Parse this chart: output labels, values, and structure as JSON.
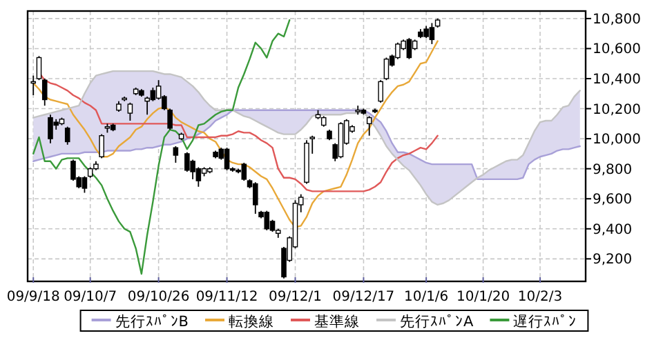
{
  "chart_data": {
    "type": "candlestick",
    "categories": [
      "09/9/18",
      null,
      null,
      null,
      null,
      null,
      null,
      null,
      null,
      null,
      "09/10/7",
      null,
      null,
      null,
      null,
      null,
      null,
      null,
      null,
      null,
      null,
      null,
      "09/10/26",
      null,
      null,
      null,
      null,
      null,
      null,
      null,
      null,
      null,
      null,
      null,
      "09/11/12",
      null,
      null,
      null,
      null,
      null,
      null,
      null,
      null,
      null,
      null,
      null,
      "09/12/1",
      null,
      null,
      null,
      null,
      null,
      null,
      null,
      null,
      null,
      null,
      null,
      "09/12/17",
      null,
      null,
      null,
      null,
      null,
      null,
      null,
      null,
      null,
      null,
      "10/1/6",
      null,
      null,
      null,
      null,
      null,
      null,
      null,
      null,
      null,
      "10/1/20",
      null,
      null,
      null,
      null,
      null,
      null,
      null,
      null,
      null,
      "10/2/3",
      null,
      null,
      null,
      null,
      null,
      null,
      null
    ],
    "ohlc": [
      [
        10370,
        10420,
        10290,
        10380
      ],
      [
        10400,
        10550,
        10390,
        10540
      ],
      [
        10390,
        10400,
        10220,
        10260
      ],
      [
        10140,
        10160,
        9970,
        10000
      ],
      [
        10110,
        10130,
        10060,
        10090
      ],
      [
        10100,
        10140,
        10090,
        10130
      ],
      [
        10070,
        10080,
        9960,
        9980
      ],
      [
        9850,
        9860,
        9720,
        9730
      ],
      [
        9740,
        9750,
        9670,
        9680
      ],
      [
        9740,
        9750,
        9640,
        9670
      ],
      [
        9750,
        9810,
        9740,
        9800
      ],
      [
        9800,
        9850,
        9790,
        9830
      ],
      [
        9880,
        10030,
        9870,
        10020
      ],
      [
        10070,
        10100,
        10040,
        10080
      ],
      [
        10090,
        10100,
        10050,
        10060
      ],
      [
        10190,
        10250,
        10180,
        10230
      ],
      [
        10260,
        10280,
        10250,
        10270
      ],
      [
        10170,
        10240,
        10120,
        10230
      ],
      [
        10300,
        10340,
        10290,
        10330
      ],
      [
        10320,
        10330,
        10280,
        10290
      ],
      [
        10250,
        10280,
        10160,
        10270
      ],
      [
        10320,
        10340,
        10250,
        10260
      ],
      [
        10270,
        10390,
        10260,
        10350
      ],
      [
        10280,
        10290,
        10190,
        10200
      ],
      [
        10190,
        10200,
        10060,
        10070
      ],
      [
        9940,
        9950,
        9840,
        9890
      ],
      [
        10000,
        10040,
        9990,
        10030
      ],
      [
        9900,
        9910,
        9780,
        9790
      ],
      [
        9850,
        9860,
        9730,
        9780
      ],
      [
        9800,
        9810,
        9680,
        9720
      ],
      [
        9770,
        9810,
        9750,
        9800
      ],
      [
        9780,
        9810,
        9770,
        9800
      ],
      [
        9910,
        9920,
        9870,
        9880
      ],
      [
        9930,
        9940,
        9860,
        9870
      ],
      [
        9930,
        9940,
        9790,
        9800
      ],
      [
        9800,
        9810,
        9780,
        9790
      ],
      [
        9790,
        9800,
        9770,
        9780
      ],
      [
        9830,
        9840,
        9720,
        9730
      ],
      [
        9720,
        9730,
        9670,
        9680
      ],
      [
        9700,
        9710,
        9500,
        9560
      ],
      [
        9510,
        9520,
        9470,
        9480
      ],
      [
        9510,
        9520,
        9390,
        9400
      ],
      [
        9450,
        9460,
        9380,
        9390
      ],
      [
        9370,
        9400,
        9340,
        9390
      ],
      [
        9270,
        9280,
        9070,
        9080
      ],
      [
        9190,
        9350,
        9180,
        9340
      ],
      [
        9280,
        9590,
        9270,
        9570
      ],
      [
        9560,
        9630,
        9510,
        9610
      ],
      [
        9710,
        9990,
        9700,
        9970
      ],
      [
        10000,
        10020,
        9900,
        10010
      ],
      [
        10140,
        10190,
        10130,
        10160
      ],
      [
        10090,
        10150,
        10080,
        10140
      ],
      [
        10050,
        10060,
        9990,
        10000
      ],
      [
        9960,
        9970,
        9850,
        9870
      ],
      [
        9880,
        10110,
        9870,
        10100
      ],
      [
        9970,
        10130,
        9960,
        10120
      ],
      [
        10050,
        10090,
        10040,
        10080
      ],
      [
        10180,
        10220,
        10160,
        10190
      ],
      [
        10190,
        10200,
        10160,
        10170
      ],
      [
        10100,
        10150,
        10020,
        10140
      ],
      [
        10190,
        10200,
        10170,
        10180
      ],
      [
        10250,
        10390,
        10240,
        10380
      ],
      [
        10400,
        10540,
        10390,
        10530
      ],
      [
        10550,
        10560,
        10480,
        10490
      ],
      [
        10540,
        10640,
        10530,
        10630
      ],
      [
        10600,
        10660,
        10590,
        10650
      ],
      [
        10660,
        10670,
        10530,
        10540
      ],
      [
        10600,
        10660,
        10590,
        10650
      ],
      [
        10710,
        10730,
        10670,
        10680
      ],
      [
        10730,
        10750,
        10670,
        10680
      ],
      [
        10740,
        10770,
        10630,
        10660
      ],
      [
        10750,
        10800,
        10740,
        10790
      ],
      null,
      null,
      null,
      null,
      null,
      null,
      null,
      null,
      null,
      null,
      null,
      null,
      null,
      null,
      null,
      null,
      null,
      null,
      null,
      null,
      null,
      null,
      null,
      null,
      null
    ],
    "series": [
      {
        "type": "line",
        "name": "先行ｽﾊﾟﾝB",
        "color": "#a8a0d8",
        "values": [
          9850,
          9860,
          9870,
          9880,
          9890,
          9900,
          9900,
          9900,
          9900,
          9910,
          9910,
          9910,
          9910,
          9920,
          9920,
          9920,
          9920,
          9920,
          9930,
          9930,
          9940,
          9940,
          9950,
          9960,
          9960,
          9970,
          9980,
          10000,
          10010,
          10030,
          10050,
          10080,
          10120,
          10140,
          10160,
          10190,
          10190,
          10190,
          10190,
          10190,
          10190,
          10190,
          10190,
          10190,
          10190,
          10190,
          10190,
          10190,
          10190,
          10190,
          10190,
          10190,
          10190,
          10190,
          10190,
          10190,
          10190,
          10190,
          10190,
          10170,
          10140,
          10110,
          10050,
          9970,
          9910,
          9910,
          9900,
          9880,
          9860,
          9840,
          9830,
          9830,
          9830,
          9830,
          9830,
          9830,
          9830,
          9830,
          9730,
          9730,
          9730,
          9730,
          9730,
          9730,
          9730,
          9730,
          9740,
          9830,
          9860,
          9880,
          9890,
          9900,
          9920,
          9930,
          9930,
          9940,
          9950
        ],
        "upper": [
          10140,
          10150,
          10160,
          10170,
          10180,
          10190,
          10200,
          10210,
          10220,
          10300,
          10370,
          10420,
          10430,
          10440,
          10450,
          10450,
          10450,
          10450,
          10450,
          10450,
          10450,
          10450,
          10440,
          10430,
          10430,
          10420,
          10410,
          10380,
          10350,
          10310,
          10260,
          10220,
          10190,
          10190,
          10190,
          10190,
          10190,
          10190,
          10190,
          10190,
          10190,
          10190,
          10190,
          10190,
          10190,
          10190,
          10190,
          10190,
          10190,
          10190,
          10190,
          10190,
          10190,
          10190,
          10190,
          10190,
          10190,
          10190,
          10190,
          10170,
          10140,
          10110,
          10050,
          9970,
          9910,
          9910,
          9900,
          9880,
          9860,
          9840,
          9830,
          9830,
          9830,
          9830,
          9830,
          9830,
          9830,
          9830,
          9740,
          9760,
          9790,
          9810,
          9830,
          9850,
          9860,
          9860,
          9890,
          9970,
          10050,
          10110,
          10120,
          10120,
          10160,
          10210,
          10220,
          10280,
          10320
        ],
        "lower": [
          9850,
          9860,
          9870,
          9880,
          9890,
          9900,
          9900,
          9900,
          9900,
          9910,
          9910,
          9910,
          9910,
          9920,
          9920,
          9920,
          9920,
          9920,
          9930,
          9930,
          9940,
          9940,
          9950,
          9960,
          9960,
          9970,
          9980,
          10000,
          10010,
          10030,
          10050,
          10080,
          10120,
          10140,
          10160,
          10190,
          10170,
          10150,
          10140,
          10120,
          10100,
          10080,
          10060,
          10040,
          10030,
          10030,
          10030,
          10060,
          10100,
          10150,
          10160,
          10160,
          10160,
          10160,
          10160,
          10170,
          10170,
          10170,
          10180,
          10130,
          10080,
          10020,
          9950,
          9900,
          9860,
          9820,
          9790,
          9740,
          9690,
          9630,
          9580,
          9560,
          9570,
          9590,
          9620,
          9650,
          9680,
          9710,
          9730,
          9730,
          9730,
          9730,
          9730,
          9730,
          9730,
          9730,
          9740,
          9830,
          9860,
          9880,
          9890,
          9900,
          9920,
          9930,
          9930,
          9940,
          9950
        ]
      },
      {
        "type": "line",
        "name": "転換線",
        "color": "#e8a838",
        "values": [
          10370,
          10330,
          10280,
          10260,
          10250,
          10240,
          10230,
          10160,
          10110,
          10060,
          10000,
          9930,
          9880,
          9880,
          9900,
          9950,
          9980,
          10010,
          10060,
          10080,
          10130,
          10170,
          10200,
          10210,
          10190,
          10140,
          10110,
          10090,
          10070,
          10050,
          10040,
          10000,
          9980,
          9920,
          9860,
          9840,
          9830,
          9830,
          9810,
          9780,
          9750,
          9730,
          9670,
          9600,
          9530,
          9460,
          9410,
          9420,
          9480,
          9570,
          9620,
          9650,
          9660,
          9670,
          9680,
          9760,
          9860,
          9970,
          10030,
          10070,
          10140,
          10200,
          10260,
          10310,
          10350,
          10360,
          10380,
          10440,
          10500,
          10510,
          10580,
          10650,
          null,
          null,
          null,
          null,
          null,
          null,
          null,
          null,
          null,
          null,
          null,
          null,
          null,
          null,
          null,
          null,
          null,
          null,
          null,
          null,
          null,
          null,
          null,
          null,
          null
        ]
      },
      {
        "type": "line",
        "name": "基準線",
        "color": "#e05858",
        "values": [
          null,
          10440,
          10390,
          10370,
          10360,
          10340,
          10320,
          10290,
          10270,
          10240,
          10220,
          10190,
          10100,
          10100,
          10100,
          10100,
          10100,
          10100,
          10100,
          10100,
          10100,
          10100,
          10100,
          10100,
          10100,
          10090,
          10090,
          10010,
          10010,
          10010,
          10010,
          10010,
          10010,
          10020,
          10020,
          10030,
          10050,
          10040,
          10040,
          10020,
          9990,
          9970,
          9940,
          9800,
          9740,
          9740,
          9730,
          9700,
          9660,
          9650,
          9650,
          9650,
          9650,
          9650,
          9650,
          9650,
          9650,
          9650,
          9650,
          9660,
          9680,
          9710,
          9780,
          9840,
          9870,
          9890,
          9900,
          9920,
          9940,
          9930,
          9970,
          10020,
          null,
          null,
          null,
          null,
          null,
          null,
          null,
          null,
          null,
          null,
          null,
          null,
          null,
          null,
          null,
          null,
          null,
          null,
          null,
          null,
          null,
          null,
          null,
          null,
          null
        ]
      },
      {
        "type": "line",
        "name": "先行ｽﾊﾟﾝA",
        "color": "#c4c4c4",
        "values": [
          10140,
          10150,
          10160,
          10170,
          10180,
          10190,
          10200,
          10210,
          10220,
          10300,
          10370,
          10420,
          10430,
          10440,
          10450,
          10450,
          10450,
          10450,
          10450,
          10450,
          10450,
          10450,
          10440,
          10430,
          10430,
          10420,
          10410,
          10380,
          10350,
          10310,
          10260,
          10220,
          10190,
          10190,
          10190,
          10190,
          10170,
          10150,
          10140,
          10120,
          10100,
          10080,
          10060,
          10040,
          10030,
          10030,
          10030,
          10060,
          10100,
          10150,
          10160,
          10160,
          10160,
          10160,
          10160,
          10170,
          10170,
          10170,
          10180,
          10130,
          10080,
          10020,
          9950,
          9900,
          9860,
          9820,
          9790,
          9740,
          9690,
          9630,
          9580,
          9560,
          9570,
          9590,
          9620,
          9650,
          9680,
          9710,
          9740,
          9760,
          9790,
          9810,
          9830,
          9850,
          9860,
          9860,
          9890,
          9970,
          10050,
          10110,
          10120,
          10120,
          10160,
          10210,
          10220,
          10280,
          10320
        ]
      },
      {
        "type": "line",
        "name": "遅行ｽﾊﾟﾝ",
        "color": "#3a9a3a",
        "values": [
          9900,
          10010,
          9850,
          9850,
          9800,
          9860,
          9870,
          9870,
          9870,
          9820,
          9780,
          9740,
          9690,
          9600,
          9520,
          9450,
          9400,
          9380,
          9270,
          9100,
          9360,
          9580,
          9820,
          10010,
          10060,
          10050,
          10010,
          9930,
          9990,
          10090,
          10100,
          10130,
          10160,
          10180,
          10190,
          10190,
          10340,
          10430,
          10530,
          10640,
          10600,
          10540,
          10650,
          10700,
          10680,
          10790,
          null,
          null,
          null,
          null,
          null,
          null,
          null,
          null,
          null,
          null,
          null,
          null,
          null,
          null,
          null,
          null,
          null,
          null,
          null,
          null,
          null,
          null,
          null,
          null,
          null,
          null,
          null,
          null,
          null,
          null,
          null,
          null,
          null,
          null,
          null,
          null,
          null,
          null,
          null,
          null,
          null,
          null,
          null,
          null,
          null,
          null,
          null,
          null,
          null,
          null,
          null
        ]
      }
    ],
    "ylim": [
      9050,
      10850
    ],
    "yticks": [
      {
        "value": 9200,
        "label": "9,200"
      },
      {
        "value": 9400,
        "label": "9,400"
      },
      {
        "value": 9600,
        "label": "9,600"
      },
      {
        "value": 9800,
        "label": "9,800"
      },
      {
        "value": 10000,
        "label": "10,000"
      },
      {
        "value": 10200,
        "label": "10,200"
      },
      {
        "value": 10400,
        "label": "10,400"
      },
      {
        "value": 10600,
        "label": "10,600"
      },
      {
        "value": 10800,
        "label": "10,800"
      }
    ],
    "grid": true,
    "legend": "bottom"
  }
}
